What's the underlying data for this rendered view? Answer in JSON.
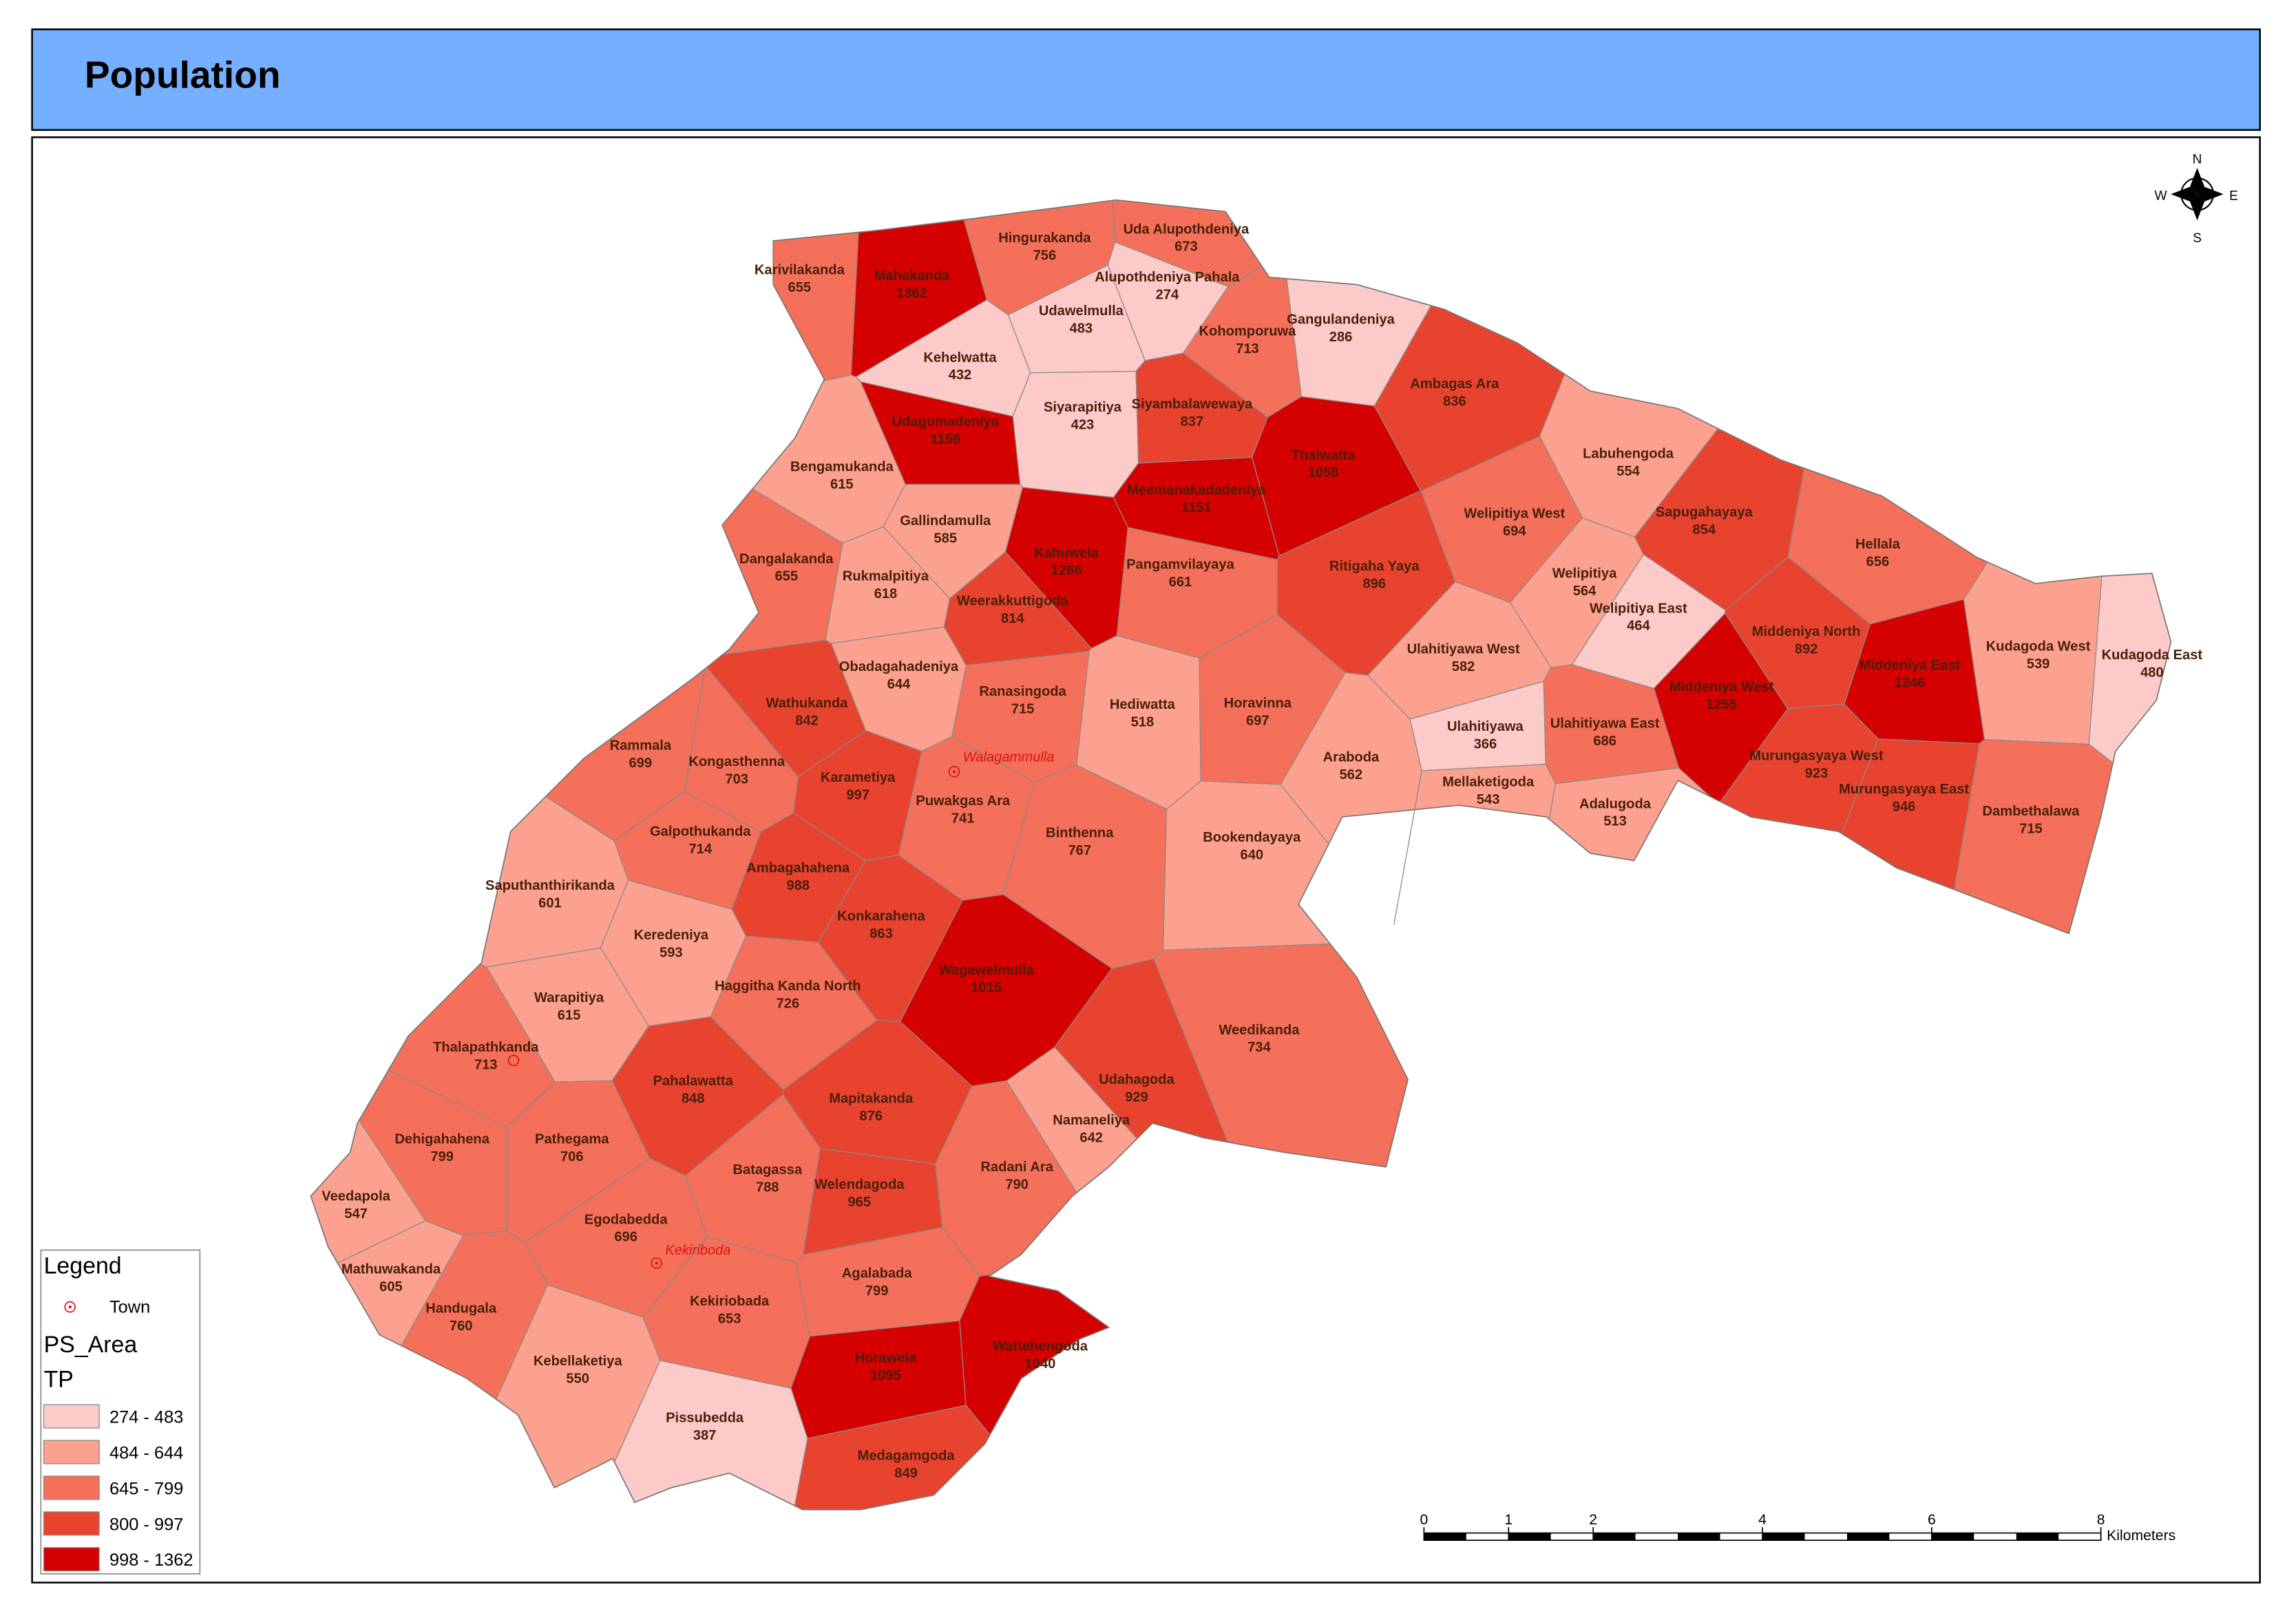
{
  "title": "Population",
  "legend": {
    "title": "Legend",
    "town": "Town",
    "layer": "PS_Area",
    "field": "TP",
    "classes": [
      {
        "label": "274 - 483",
        "min": 274,
        "max": 483,
        "color": "#fdcaca"
      },
      {
        "label": "484 - 644",
        "min": 484,
        "max": 644,
        "color": "#fca18f"
      },
      {
        "label": "645 - 799",
        "min": 645,
        "max": 799,
        "color": "#f4705a"
      },
      {
        "label": "800 - 997",
        "min": 800,
        "max": 997,
        "color": "#e8432f"
      },
      {
        "label": "998 - 1362",
        "min": 998,
        "max": 1362,
        "color": "#d50000"
      }
    ]
  },
  "compass": {
    "n": "N",
    "e": "E",
    "s": "S",
    "w": "W"
  },
  "scale_bar": {
    "ticks": [
      0,
      1,
      2,
      4,
      6,
      8
    ],
    "unit": "Kilometers"
  },
  "towns": [
    "Walagammulla",
    "Kekiriboda"
  ],
  "regions": [
    {
      "name": "Karivilakanda",
      "population": 655
    },
    {
      "name": "Mahakanda",
      "population": 1362
    },
    {
      "name": "Hingurakanda",
      "population": 756
    },
    {
      "name": "Uda Alupothdeniya",
      "population": 673
    },
    {
      "name": "Alupothdeniya Pahala",
      "population": 274
    },
    {
      "name": "Udawelmulla",
      "population": 483
    },
    {
      "name": "Kehelwatta",
      "population": 432
    },
    {
      "name": "Gangulandeniya",
      "population": 286
    },
    {
      "name": "Kohomporuwa",
      "population": 713
    },
    {
      "name": "Siyarapitiya",
      "population": 423
    },
    {
      "name": "Udagomadeniya",
      "population": 1156
    },
    {
      "name": "Siyambalawewaya",
      "population": 837
    },
    {
      "name": "Thalwatta",
      "population": 1058
    },
    {
      "name": "Ambagas Ara",
      "population": 836
    },
    {
      "name": "Labuhengoda",
      "population": 554
    },
    {
      "name": "Bengamukanda",
      "population": 615
    },
    {
      "name": "Meemanakadadeniya",
      "population": 1151
    },
    {
      "name": "Gallindamulla",
      "population": 585
    },
    {
      "name": "Welipitiya West",
      "population": 694
    },
    {
      "name": "Sapugahayaya",
      "population": 854
    },
    {
      "name": "Hellala",
      "population": 656
    },
    {
      "name": "Dangalakanda",
      "population": 655
    },
    {
      "name": "Kahuwela",
      "population": 1266
    },
    {
      "name": "Pangamvilayaya",
      "population": 661
    },
    {
      "name": "Ritigaha Yaya",
      "population": 896
    },
    {
      "name": "Rukmalpitiya",
      "population": 618
    },
    {
      "name": "Welipitiya",
      "population": 564
    },
    {
      "name": "Welipitiya East",
      "population": 464
    },
    {
      "name": "Weerakkuttigoda",
      "population": 814
    },
    {
      "name": "Middeniya North",
      "population": 892
    },
    {
      "name": "Kudagoda West",
      "population": 539
    },
    {
      "name": "Kudagoda East",
      "population": 480
    },
    {
      "name": "Ulahitiyawa West",
      "population": 582
    },
    {
      "name": "Obadagahadeniya",
      "population": 644
    },
    {
      "name": "Middeniya East",
      "population": 1246
    },
    {
      "name": "Middeniya West",
      "population": 1255
    },
    {
      "name": "Ranasingoda",
      "population": 715
    },
    {
      "name": "Hediwatta",
      "population": 518
    },
    {
      "name": "Horavinna",
      "population": 697
    },
    {
      "name": "Wathukanda",
      "population": 842
    },
    {
      "name": "Ulahitiyawa",
      "population": 366
    },
    {
      "name": "Ulahitiyawa East",
      "population": 686
    },
    {
      "name": "Rammala",
      "population": 699
    },
    {
      "name": "Araboda",
      "population": 562
    },
    {
      "name": "Murungasyaya West",
      "population": 923
    },
    {
      "name": "Kongasthenna",
      "population": 703
    },
    {
      "name": "Karametiya",
      "population": 997
    },
    {
      "name": "Mellaketigoda",
      "population": 543
    },
    {
      "name": "Murungasyaya East",
      "population": 946
    },
    {
      "name": "Puwakgas Ara",
      "population": 741
    },
    {
      "name": "Adalugoda",
      "population": 513
    },
    {
      "name": "Dambethalawa",
      "population": 715
    },
    {
      "name": "Binthenna",
      "population": 767
    },
    {
      "name": "Galpothukanda",
      "population": 714
    },
    {
      "name": "Bookendayaya",
      "population": 640
    },
    {
      "name": "Ambagahahena",
      "population": 988
    },
    {
      "name": "Saputhanthirikanda",
      "population": 601
    },
    {
      "name": "Konkarahena",
      "population": 863
    },
    {
      "name": "Keredeniya",
      "population": 593
    },
    {
      "name": "Wagawelmulla",
      "population": 1015
    },
    {
      "name": "Haggitha Kanda North",
      "population": 726
    },
    {
      "name": "Warapitiya",
      "population": 615
    },
    {
      "name": "Weedikanda",
      "population": 734
    },
    {
      "name": "Thalapathkanda",
      "population": 713
    },
    {
      "name": "Udahagoda",
      "population": 929
    },
    {
      "name": "Pahalawatta",
      "population": 848
    },
    {
      "name": "Mapitakanda",
      "population": 876
    },
    {
      "name": "Namaneliya",
      "population": 642
    },
    {
      "name": "Dehigahahena",
      "population": 799
    },
    {
      "name": "Pathegama",
      "population": 706
    },
    {
      "name": "Batagassa",
      "population": 788
    },
    {
      "name": "Radani Ara",
      "population": 790
    },
    {
      "name": "Welendagoda",
      "population": 965
    },
    {
      "name": "Veedapola",
      "population": 547
    },
    {
      "name": "Egodabedda",
      "population": 696
    },
    {
      "name": "Mathuwakanda",
      "population": 605
    },
    {
      "name": "Agalabada",
      "population": 799
    },
    {
      "name": "Kekiriobada",
      "population": 653
    },
    {
      "name": "Handugala",
      "population": 760
    },
    {
      "name": "Kebellaketiya",
      "population": 550
    },
    {
      "name": "Horawela",
      "population": 1095
    },
    {
      "name": "Wattehengoda",
      "population": 1040
    },
    {
      "name": "Pissubedda",
      "population": 387
    },
    {
      "name": "Medagamgoda",
      "population": 849
    }
  ]
}
